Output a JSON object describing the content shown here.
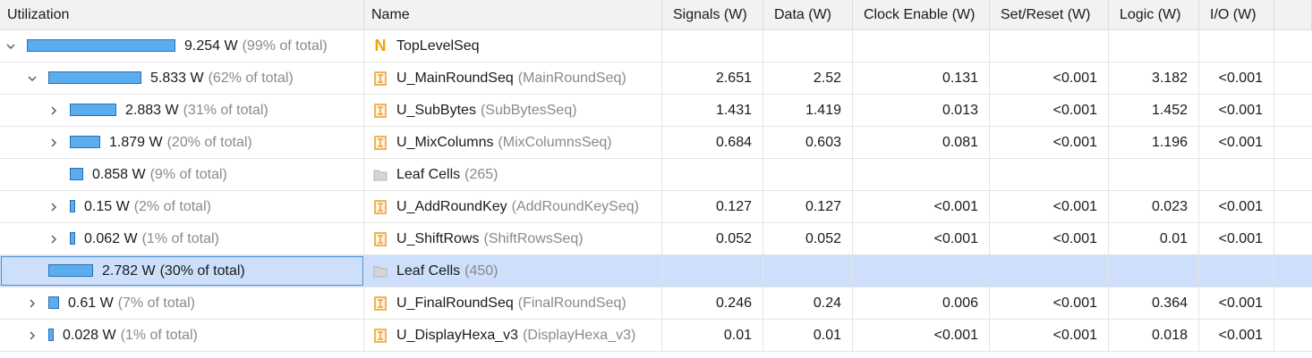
{
  "columns": [
    "Utilization",
    "Name",
    "Signals (W)",
    "Data (W)",
    "Clock Enable (W)",
    "Set/Reset (W)",
    "Logic (W)",
    "I/O (W)"
  ],
  "colors": {
    "bar_fill": "#5aaef0",
    "bar_border": "#2f6faf",
    "selection": "#cddffa",
    "top_icon": "#f0a500",
    "module_icon": "#e8a33a"
  },
  "rows": [
    {
      "level": 0,
      "expander": "expanded",
      "util_value": "9.254 W",
      "util_pct": "(99% of total)",
      "fraction": 0.99,
      "icon": "top-module-icon",
      "name": "TopLevelSeq",
      "type": "",
      "signals": "",
      "data": "",
      "clock_enable": "",
      "set_reset": "",
      "logic": "",
      "io": ""
    },
    {
      "level": 1,
      "expander": "expanded",
      "util_value": "5.833 W",
      "util_pct": "(62% of total)",
      "fraction": 0.62,
      "icon": "module-icon",
      "name": "U_MainRoundSeq",
      "type": "(MainRoundSeq)",
      "signals": "2.651",
      "data": "2.52",
      "clock_enable": "0.131",
      "set_reset": "<0.001",
      "logic": "3.182",
      "io": "<0.001"
    },
    {
      "level": 2,
      "expander": "collapsed",
      "util_value": "2.883 W",
      "util_pct": "(31% of total)",
      "fraction": 0.31,
      "icon": "module-icon",
      "name": "U_SubBytes",
      "type": "(SubBytesSeq)",
      "signals": "1.431",
      "data": "1.419",
      "clock_enable": "0.013",
      "set_reset": "<0.001",
      "logic": "1.452",
      "io": "<0.001"
    },
    {
      "level": 2,
      "expander": "collapsed",
      "util_value": "1.879 W",
      "util_pct": "(20% of total)",
      "fraction": 0.2,
      "icon": "module-icon",
      "name": "U_MixColumns",
      "type": "(MixColumnsSeq)",
      "signals": "0.684",
      "data": "0.603",
      "clock_enable": "0.081",
      "set_reset": "<0.001",
      "logic": "1.196",
      "io": "<0.001"
    },
    {
      "level": 2,
      "expander": "none",
      "util_value": "0.858 W",
      "util_pct": "(9% of total)",
      "fraction": 0.09,
      "icon": "folder-icon",
      "name": "Leaf Cells",
      "type": "(265)",
      "signals": "",
      "data": "",
      "clock_enable": "",
      "set_reset": "",
      "logic": "",
      "io": ""
    },
    {
      "level": 2,
      "expander": "collapsed",
      "util_value": "0.15 W",
      "util_pct": "(2% of total)",
      "fraction": 0.02,
      "icon": "module-icon",
      "name": "U_AddRoundKey",
      "type": "(AddRoundKeySeq)",
      "signals": "0.127",
      "data": "0.127",
      "clock_enable": "<0.001",
      "set_reset": "<0.001",
      "logic": "0.023",
      "io": "<0.001"
    },
    {
      "level": 2,
      "expander": "collapsed",
      "util_value": "0.062 W",
      "util_pct": "(1% of total)",
      "fraction": 0.01,
      "icon": "module-icon",
      "name": "U_ShiftRows",
      "type": "(ShiftRowsSeq)",
      "signals": "0.052",
      "data": "0.052",
      "clock_enable": "<0.001",
      "set_reset": "<0.001",
      "logic": "0.01",
      "io": "<0.001"
    },
    {
      "level": 1,
      "expander": "none",
      "selected": true,
      "util_value": "2.782 W",
      "util_pct": "(30% of total)",
      "fraction": 0.3,
      "icon": "folder-icon",
      "name": "Leaf Cells",
      "type": "(450)",
      "signals": "",
      "data": "",
      "clock_enable": "",
      "set_reset": "",
      "logic": "",
      "io": ""
    },
    {
      "level": 1,
      "expander": "collapsed",
      "util_value": "0.61 W",
      "util_pct": "(7% of total)",
      "fraction": 0.07,
      "icon": "module-icon",
      "name": "U_FinalRoundSeq",
      "type": "(FinalRoundSeq)",
      "signals": "0.246",
      "data": "0.24",
      "clock_enable": "0.006",
      "set_reset": "<0.001",
      "logic": "0.364",
      "io": "<0.001"
    },
    {
      "level": 1,
      "expander": "collapsed",
      "util_value": "0.028 W",
      "util_pct": "(1% of total)",
      "fraction": 0.01,
      "icon": "module-icon",
      "name": "U_DisplayHexa_v3",
      "type": "(DisplayHexa_v3)",
      "signals": "0.01",
      "data": "0.01",
      "clock_enable": "<0.001",
      "set_reset": "<0.001",
      "logic": "0.018",
      "io": "<0.001"
    }
  ]
}
